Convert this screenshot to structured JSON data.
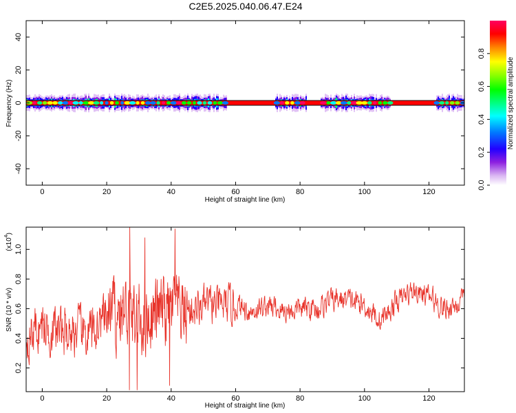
{
  "title": "C2E5.2025.040.06.47.E24",
  "chart_data": [
    {
      "type": "heatmap",
      "xlabel": "Height of straight line (km)",
      "ylabel": "Frequency (Hz)",
      "xlim": [
        -5,
        131
      ],
      "ylim": [
        -50,
        50
      ],
      "xticks": [
        "0",
        "20",
        "40",
        "60",
        "80",
        "100",
        "120"
      ],
      "yticks": [
        "-40",
        "-20",
        "0",
        "20",
        "40"
      ],
      "colorbar": {
        "label": "Normalized spectral amplitude",
        "range": [
          0,
          1
        ],
        "ticks": [
          "0.0",
          "0.2",
          "0.4",
          "0.6",
          "0.8"
        ],
        "colors": [
          "#ffffff",
          "#d9b3f2",
          "#8c1fe0",
          "#2200ff",
          "#0078ff",
          "#00ffff",
          "#00ff80",
          "#00ff00",
          "#80ff00",
          "#ffff00",
          "#ff8000",
          "#ff0000",
          "#ff0060"
        ]
      },
      "band_center_hz": 0,
      "band_halfwidth_hz": 5,
      "quiet_segments_km": [
        [
          57,
          72
        ],
        [
          82,
          86
        ],
        [
          108,
          122
        ]
      ],
      "grid": false
    },
    {
      "type": "line",
      "xlabel": "Height of straight line (km)",
      "ylabel": "SNR (10 * v/v)",
      "multiplier": "(x10",
      "multiplier_exp": "4",
      "multiplier_close": ")",
      "xlim": [
        -5,
        131
      ],
      "ylim": [
        0.04,
        1.15
      ],
      "xticks": [
        "0",
        "20",
        "40",
        "60",
        "80",
        "100",
        "120"
      ],
      "yticks": [
        "0.2",
        "0.4",
        "0.6",
        "0.8",
        "1.0"
      ],
      "color": "#e8332a",
      "x": [
        -5,
        0,
        5,
        10,
        15,
        20,
        25,
        30,
        35,
        40,
        45,
        50,
        55,
        60,
        65,
        70,
        75,
        80,
        85,
        90,
        95,
        100,
        105,
        110,
        115,
        120,
        125,
        131
      ],
      "y": [
        0.42,
        0.48,
        0.44,
        0.45,
        0.42,
        0.55,
        0.58,
        0.52,
        0.57,
        0.58,
        0.58,
        0.62,
        0.62,
        0.62,
        0.58,
        0.62,
        0.58,
        0.6,
        0.6,
        0.66,
        0.66,
        0.62,
        0.52,
        0.65,
        0.72,
        0.68,
        0.6,
        0.65
      ],
      "peaks": [
        {
          "x": 27.2,
          "y": 1.15
        },
        {
          "x": 41.2,
          "y": 1.14
        },
        {
          "x": 31.8,
          "y": 1.08
        },
        {
          "x": 29.5,
          "y": 0.05
        },
        {
          "x": 27.0,
          "y": 0.05
        },
        {
          "x": 39.5,
          "y": 0.08
        }
      ],
      "grid": false
    }
  ]
}
